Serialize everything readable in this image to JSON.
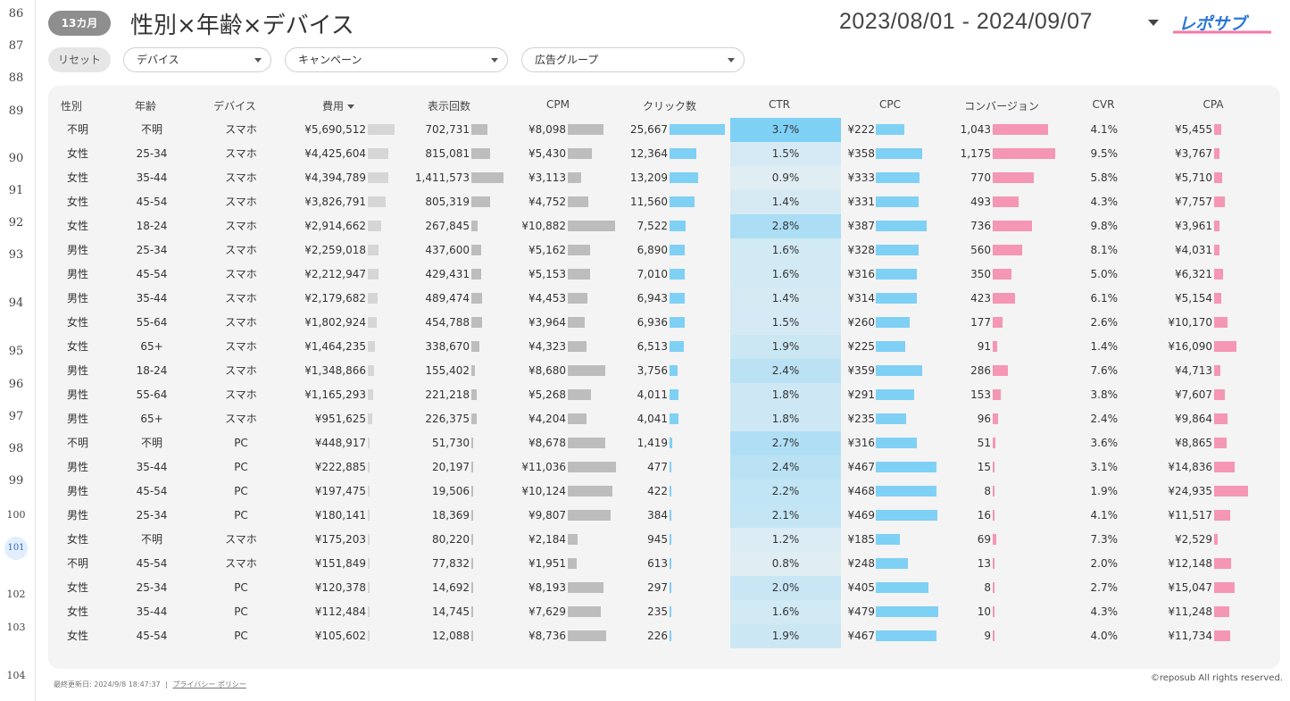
{
  "row_numbers": [
    "86",
    "87",
    "88",
    "89",
    "90",
    "91",
    "92",
    "93",
    "94",
    "95",
    "96",
    "97",
    "98",
    "99",
    "100",
    "101",
    "102",
    "103",
    "104"
  ],
  "header": {
    "period_pill": "13カ月",
    "title": "性別×年齢×デバイス",
    "date_range": "2023/08/01 - 2024/09/07",
    "logo_text": "レポサブ"
  },
  "filters": {
    "reset_label": "リセット",
    "device": "デバイス",
    "campaign": "キャンペーン",
    "ad_group": "広告グループ"
  },
  "table": {
    "columns": [
      "性別",
      "年齢",
      "デバイス",
      "費用",
      "表示回数",
      "CPM",
      "クリック数",
      "CTR",
      "CPC",
      "コンバージョン",
      "CVR",
      "CPA"
    ],
    "rows": [
      {
        "gender": "不明",
        "age": "不明",
        "device": "スマホ",
        "cost": "¥5,690,512",
        "cost_v": 5690512,
        "imp": "702,731",
        "imp_v": 702731,
        "cpm": "¥8,098",
        "cpm_v": 8098,
        "clicks": "25,667",
        "clicks_v": 25667,
        "ctr": "3.7%",
        "ctr_v": 3.7,
        "cpc": "¥222",
        "cpc_v": 222,
        "conv": "1,043",
        "conv_v": 1043,
        "cvr": "4.1%",
        "cpa": "¥5,455",
        "cpa_v": 5455
      },
      {
        "gender": "女性",
        "age": "25-34",
        "device": "スマホ",
        "cost": "¥4,425,604",
        "cost_v": 4425604,
        "imp": "815,081",
        "imp_v": 815081,
        "cpm": "¥5,430",
        "cpm_v": 5430,
        "clicks": "12,364",
        "clicks_v": 12364,
        "ctr": "1.5%",
        "ctr_v": 1.5,
        "cpc": "¥358",
        "cpc_v": 358,
        "conv": "1,175",
        "conv_v": 1175,
        "cvr": "9.5%",
        "cpa": "¥3,767",
        "cpa_v": 3767
      },
      {
        "gender": "女性",
        "age": "35-44",
        "device": "スマホ",
        "cost": "¥4,394,789",
        "cost_v": 4394789,
        "imp": "1,411,573",
        "imp_v": 1411573,
        "cpm": "¥3,113",
        "cpm_v": 3113,
        "clicks": "13,209",
        "clicks_v": 13209,
        "ctr": "0.9%",
        "ctr_v": 0.9,
        "cpc": "¥333",
        "cpc_v": 333,
        "conv": "770",
        "conv_v": 770,
        "cvr": "5.8%",
        "cpa": "¥5,710",
        "cpa_v": 5710
      },
      {
        "gender": "女性",
        "age": "45-54",
        "device": "スマホ",
        "cost": "¥3,826,791",
        "cost_v": 3826791,
        "imp": "805,319",
        "imp_v": 805319,
        "cpm": "¥4,752",
        "cpm_v": 4752,
        "clicks": "11,560",
        "clicks_v": 11560,
        "ctr": "1.4%",
        "ctr_v": 1.4,
        "cpc": "¥331",
        "cpc_v": 331,
        "conv": "493",
        "conv_v": 493,
        "cvr": "4.3%",
        "cpa": "¥7,757",
        "cpa_v": 7757
      },
      {
        "gender": "女性",
        "age": "18-24",
        "device": "スマホ",
        "cost": "¥2,914,662",
        "cost_v": 2914662,
        "imp": "267,845",
        "imp_v": 267845,
        "cpm": "¥10,882",
        "cpm_v": 10882,
        "clicks": "7,522",
        "clicks_v": 7522,
        "ctr": "2.8%",
        "ctr_v": 2.8,
        "cpc": "¥387",
        "cpc_v": 387,
        "conv": "736",
        "conv_v": 736,
        "cvr": "9.8%",
        "cpa": "¥3,961",
        "cpa_v": 3961
      },
      {
        "gender": "男性",
        "age": "25-34",
        "device": "スマホ",
        "cost": "¥2,259,018",
        "cost_v": 2259018,
        "imp": "437,600",
        "imp_v": 437600,
        "cpm": "¥5,162",
        "cpm_v": 5162,
        "clicks": "6,890",
        "clicks_v": 6890,
        "ctr": "1.6%",
        "ctr_v": 1.6,
        "cpc": "¥328",
        "cpc_v": 328,
        "conv": "560",
        "conv_v": 560,
        "cvr": "8.1%",
        "cpa": "¥4,031",
        "cpa_v": 4031
      },
      {
        "gender": "男性",
        "age": "45-54",
        "device": "スマホ",
        "cost": "¥2,212,947",
        "cost_v": 2212947,
        "imp": "429,431",
        "imp_v": 429431,
        "cpm": "¥5,153",
        "cpm_v": 5153,
        "clicks": "7,010",
        "clicks_v": 7010,
        "ctr": "1.6%",
        "ctr_v": 1.6,
        "cpc": "¥316",
        "cpc_v": 316,
        "conv": "350",
        "conv_v": 350,
        "cvr": "5.0%",
        "cpa": "¥6,321",
        "cpa_v": 6321
      },
      {
        "gender": "男性",
        "age": "35-44",
        "device": "スマホ",
        "cost": "¥2,179,682",
        "cost_v": 2179682,
        "imp": "489,474",
        "imp_v": 489474,
        "cpm": "¥4,453",
        "cpm_v": 4453,
        "clicks": "6,943",
        "clicks_v": 6943,
        "ctr": "1.4%",
        "ctr_v": 1.4,
        "cpc": "¥314",
        "cpc_v": 314,
        "conv": "423",
        "conv_v": 423,
        "cvr": "6.1%",
        "cpa": "¥5,154",
        "cpa_v": 5154
      },
      {
        "gender": "女性",
        "age": "55-64",
        "device": "スマホ",
        "cost": "¥1,802,924",
        "cost_v": 1802924,
        "imp": "454,788",
        "imp_v": 454788,
        "cpm": "¥3,964",
        "cpm_v": 3964,
        "clicks": "6,936",
        "clicks_v": 6936,
        "ctr": "1.5%",
        "ctr_v": 1.5,
        "cpc": "¥260",
        "cpc_v": 260,
        "conv": "177",
        "conv_v": 177,
        "cvr": "2.6%",
        "cpa": "¥10,170",
        "cpa_v": 10170
      },
      {
        "gender": "女性",
        "age": "65+",
        "device": "スマホ",
        "cost": "¥1,464,235",
        "cost_v": 1464235,
        "imp": "338,670",
        "imp_v": 338670,
        "cpm": "¥4,323",
        "cpm_v": 4323,
        "clicks": "6,513",
        "clicks_v": 6513,
        "ctr": "1.9%",
        "ctr_v": 1.9,
        "cpc": "¥225",
        "cpc_v": 225,
        "conv": "91",
        "conv_v": 91,
        "cvr": "1.4%",
        "cpa": "¥16,090",
        "cpa_v": 16090
      },
      {
        "gender": "男性",
        "age": "18-24",
        "device": "スマホ",
        "cost": "¥1,348,866",
        "cost_v": 1348866,
        "imp": "155,402",
        "imp_v": 155402,
        "cpm": "¥8,680",
        "cpm_v": 8680,
        "clicks": "3,756",
        "clicks_v": 3756,
        "ctr": "2.4%",
        "ctr_v": 2.4,
        "cpc": "¥359",
        "cpc_v": 359,
        "conv": "286",
        "conv_v": 286,
        "cvr": "7.6%",
        "cpa": "¥4,713",
        "cpa_v": 4713
      },
      {
        "gender": "男性",
        "age": "55-64",
        "device": "スマホ",
        "cost": "¥1,165,293",
        "cost_v": 1165293,
        "imp": "221,218",
        "imp_v": 221218,
        "cpm": "¥5,268",
        "cpm_v": 5268,
        "clicks": "4,011",
        "clicks_v": 4011,
        "ctr": "1.8%",
        "ctr_v": 1.8,
        "cpc": "¥291",
        "cpc_v": 291,
        "conv": "153",
        "conv_v": 153,
        "cvr": "3.8%",
        "cpa": "¥7,607",
        "cpa_v": 7607
      },
      {
        "gender": "男性",
        "age": "65+",
        "device": "スマホ",
        "cost": "¥951,625",
        "cost_v": 951625,
        "imp": "226,375",
        "imp_v": 226375,
        "cpm": "¥4,204",
        "cpm_v": 4204,
        "clicks": "4,041",
        "clicks_v": 4041,
        "ctr": "1.8%",
        "ctr_v": 1.8,
        "cpc": "¥235",
        "cpc_v": 235,
        "conv": "96",
        "conv_v": 96,
        "cvr": "2.4%",
        "cpa": "¥9,864",
        "cpa_v": 9864
      },
      {
        "gender": "不明",
        "age": "不明",
        "device": "PC",
        "cost": "¥448,917",
        "cost_v": 448917,
        "imp": "51,730",
        "imp_v": 51730,
        "cpm": "¥8,678",
        "cpm_v": 8678,
        "clicks": "1,419",
        "clicks_v": 1419,
        "ctr": "2.7%",
        "ctr_v": 2.7,
        "cpc": "¥316",
        "cpc_v": 316,
        "conv": "51",
        "conv_v": 51,
        "cvr": "3.6%",
        "cpa": "¥8,865",
        "cpa_v": 8865
      },
      {
        "gender": "男性",
        "age": "35-44",
        "device": "PC",
        "cost": "¥222,885",
        "cost_v": 222885,
        "imp": "20,197",
        "imp_v": 20197,
        "cpm": "¥11,036",
        "cpm_v": 11036,
        "clicks": "477",
        "clicks_v": 477,
        "ctr": "2.4%",
        "ctr_v": 2.4,
        "cpc": "¥467",
        "cpc_v": 467,
        "conv": "15",
        "conv_v": 15,
        "cvr": "3.1%",
        "cpa": "¥14,836",
        "cpa_v": 14836
      },
      {
        "gender": "男性",
        "age": "45-54",
        "device": "PC",
        "cost": "¥197,475",
        "cost_v": 197475,
        "imp": "19,506",
        "imp_v": 19506,
        "cpm": "¥10,124",
        "cpm_v": 10124,
        "clicks": "422",
        "clicks_v": 422,
        "ctr": "2.2%",
        "ctr_v": 2.2,
        "cpc": "¥468",
        "cpc_v": 468,
        "conv": "8",
        "conv_v": 8,
        "cvr": "1.9%",
        "cpa": "¥24,935",
        "cpa_v": 24935
      },
      {
        "gender": "男性",
        "age": "25-34",
        "device": "PC",
        "cost": "¥180,141",
        "cost_v": 180141,
        "imp": "18,369",
        "imp_v": 18369,
        "cpm": "¥9,807",
        "cpm_v": 9807,
        "clicks": "384",
        "clicks_v": 384,
        "ctr": "2.1%",
        "ctr_v": 2.1,
        "cpc": "¥469",
        "cpc_v": 469,
        "conv": "16",
        "conv_v": 16,
        "cvr": "4.1%",
        "cpa": "¥11,517",
        "cpa_v": 11517
      },
      {
        "gender": "女性",
        "age": "不明",
        "device": "スマホ",
        "cost": "¥175,203",
        "cost_v": 175203,
        "imp": "80,220",
        "imp_v": 80220,
        "cpm": "¥2,184",
        "cpm_v": 2184,
        "clicks": "945",
        "clicks_v": 945,
        "ctr": "1.2%",
        "ctr_v": 1.2,
        "cpc": "¥185",
        "cpc_v": 185,
        "conv": "69",
        "conv_v": 69,
        "cvr": "7.3%",
        "cpa": "¥2,529",
        "cpa_v": 2529
      },
      {
        "gender": "不明",
        "age": "45-54",
        "device": "スマホ",
        "cost": "¥151,849",
        "cost_v": 151849,
        "imp": "77,832",
        "imp_v": 77832,
        "cpm": "¥1,951",
        "cpm_v": 1951,
        "clicks": "613",
        "clicks_v": 613,
        "ctr": "0.8%",
        "ctr_v": 0.8,
        "cpc": "¥248",
        "cpc_v": 248,
        "conv": "13",
        "conv_v": 13,
        "cvr": "2.0%",
        "cpa": "¥12,148",
        "cpa_v": 12148
      },
      {
        "gender": "女性",
        "age": "25-34",
        "device": "PC",
        "cost": "¥120,378",
        "cost_v": 120378,
        "imp": "14,692",
        "imp_v": 14692,
        "cpm": "¥8,193",
        "cpm_v": 8193,
        "clicks": "297",
        "clicks_v": 297,
        "ctr": "2.0%",
        "ctr_v": 2.0,
        "cpc": "¥405",
        "cpc_v": 405,
        "conv": "8",
        "conv_v": 8,
        "cvr": "2.7%",
        "cpa": "¥15,047",
        "cpa_v": 15047
      },
      {
        "gender": "女性",
        "age": "35-44",
        "device": "PC",
        "cost": "¥112,484",
        "cost_v": 112484,
        "imp": "14,745",
        "imp_v": 14745,
        "cpm": "¥7,629",
        "cpm_v": 7629,
        "clicks": "235",
        "clicks_v": 235,
        "ctr": "1.6%",
        "ctr_v": 1.6,
        "cpc": "¥479",
        "cpc_v": 479,
        "conv": "10",
        "conv_v": 10,
        "cvr": "4.3%",
        "cpa": "¥11,248",
        "cpa_v": 11248
      },
      {
        "gender": "女性",
        "age": "45-54",
        "device": "PC",
        "cost": "¥105,602",
        "cost_v": 105602,
        "imp": "12,088",
        "imp_v": 12088,
        "cpm": "¥8,736",
        "cpm_v": 8736,
        "clicks": "226",
        "clicks_v": 226,
        "ctr": "1.9%",
        "ctr_v": 1.9,
        "cpc": "¥467",
        "cpc_v": 467,
        "conv": "9",
        "conv_v": 9,
        "cvr": "4.0%",
        "cpa": "¥11,734",
        "cpa_v": 11734
      }
    ]
  },
  "footer": {
    "updated": "最終更新日: 2024/9/8 18:47:37",
    "separator": "|",
    "privacy": "プライバシー ポリシー",
    "copyright": "©reposub All rights reserved."
  },
  "colors": {
    "gray_bar": "#bdbdbd",
    "blue_bar": "#7fd0f5",
    "pink_bar": "#f596b4",
    "ctr_heat": "#7fd0f5"
  }
}
